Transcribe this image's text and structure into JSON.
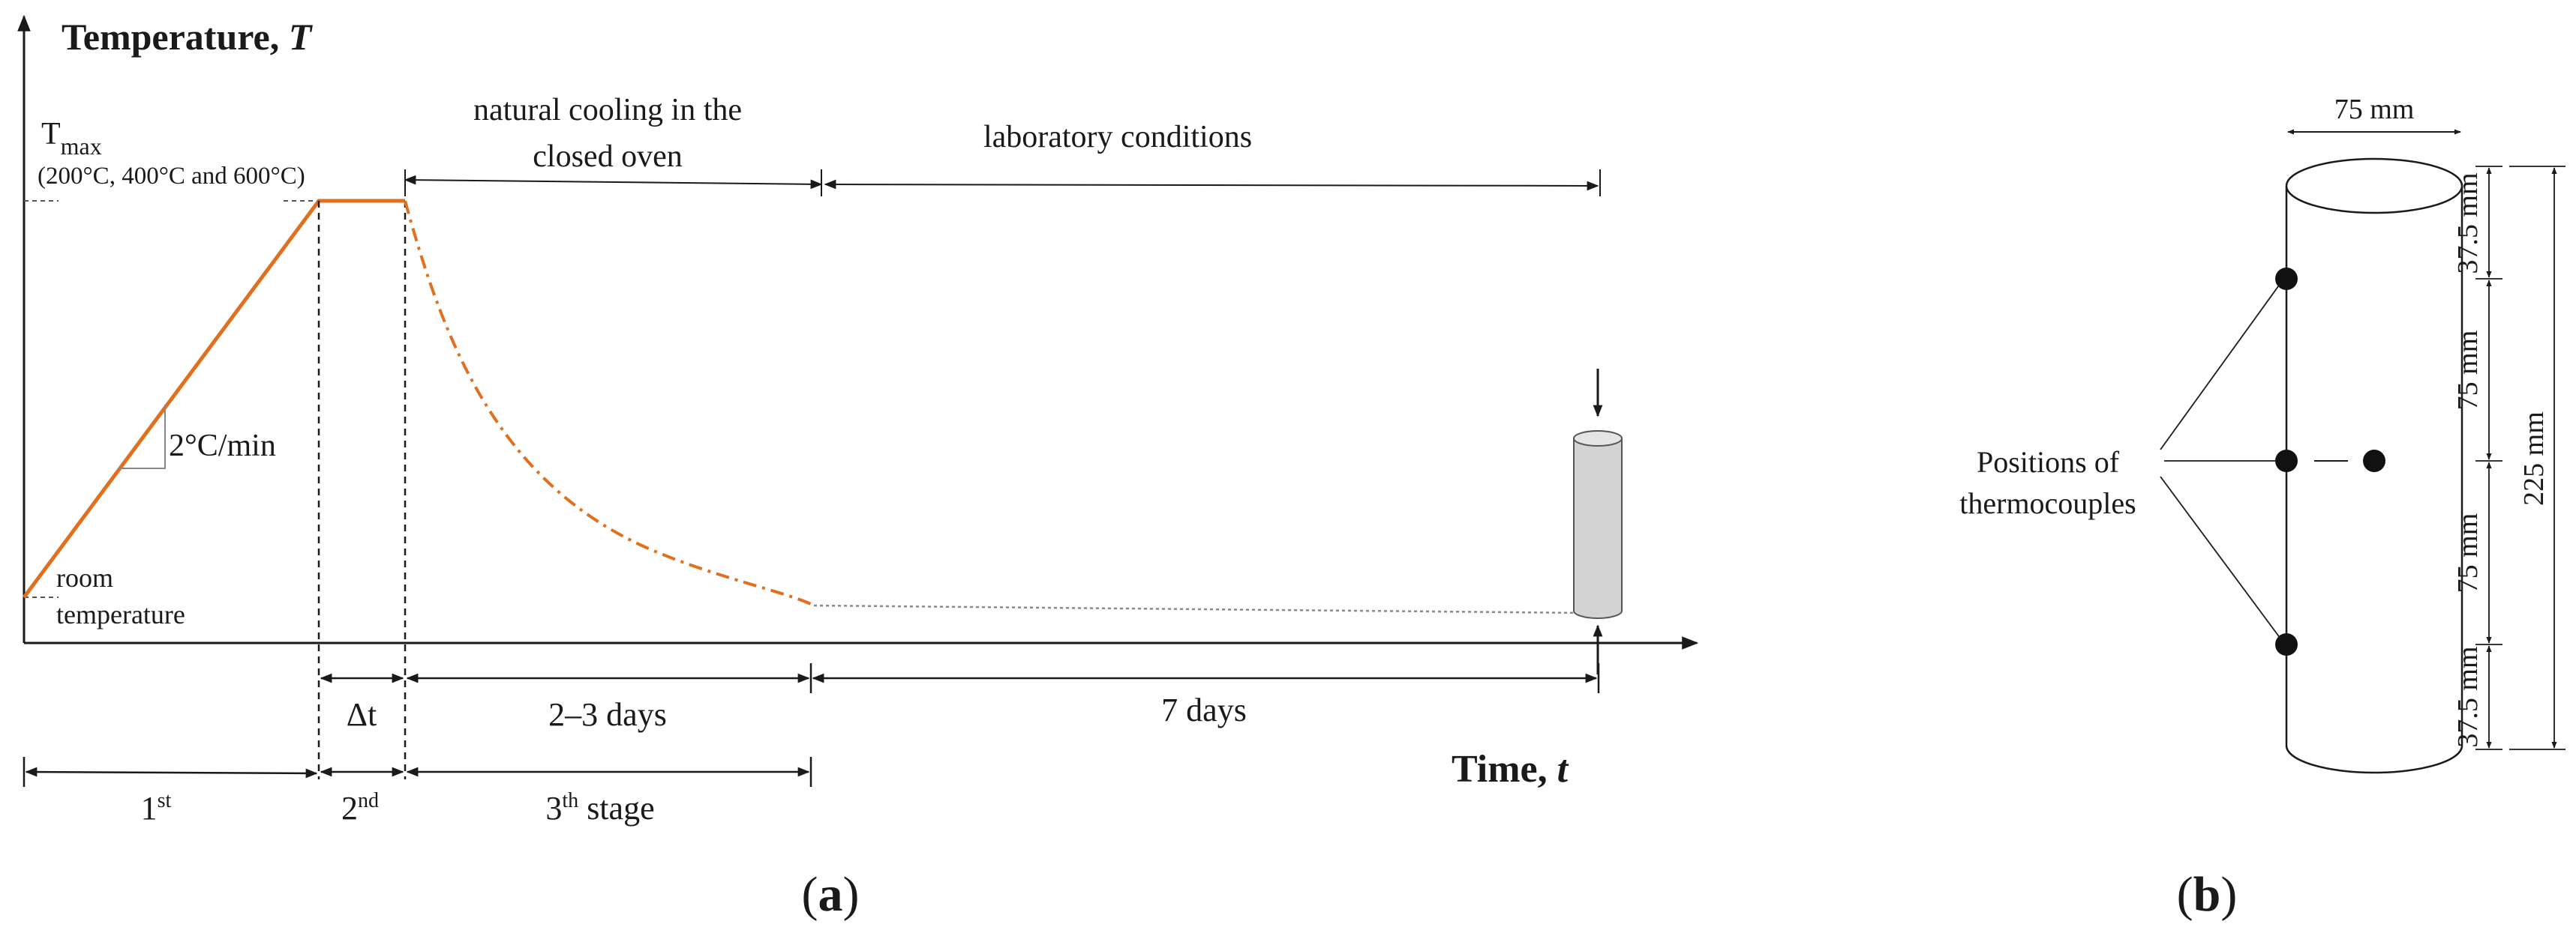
{
  "panel_a": {
    "y_axis_label": "Temperature, ",
    "y_axis_symbol": "T",
    "x_axis_label": "Time, ",
    "x_axis_symbol": "t",
    "tmax_label": "T",
    "tmax_sub": "max",
    "tmax_values": "(200°C, 400°C and 600°C)",
    "room_temp_line1": "room",
    "room_temp_line2": "temperature",
    "rate_label": "2°C/min",
    "cooling_label_line1": "natural cooling in the",
    "cooling_label_line2": "closed oven",
    "lab_conditions_label": "laboratory conditions",
    "delta_t_label": "Δt",
    "duration_cooling": "2–3 days",
    "duration_lab": "7 days",
    "stage1": "1",
    "stage1_sup": "st",
    "stage2": "2",
    "stage2_sup": "nd",
    "stage3": "3",
    "stage3_sup": "th",
    "stage3_suffix": " stage",
    "caption": "(a)",
    "curve_color": "#E07020"
  },
  "panel_b": {
    "diameter_label": "75 mm",
    "seg_top": "37.5 mm",
    "seg_upper": "75 mm",
    "seg_lower": "75 mm",
    "seg_bottom": "37.5 mm",
    "height_total": "225 mm",
    "thermocouples_line1": "Positions of",
    "thermocouples_line2": "thermocouples",
    "caption": "(b)"
  }
}
